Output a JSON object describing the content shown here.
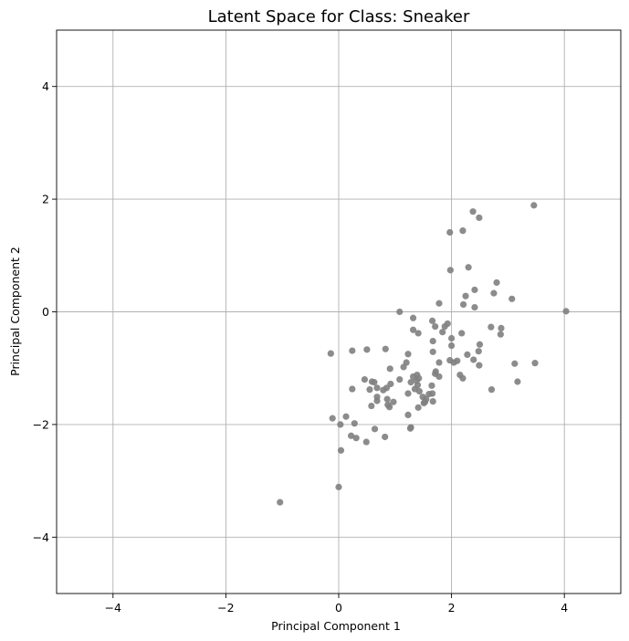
{
  "chart_data": {
    "type": "scatter",
    "title": "Latent Space for Class: Sneaker",
    "xlabel": "Principal Component 1",
    "ylabel": "Principal Component 2",
    "xlim": [
      -5,
      5
    ],
    "ylim": [
      -5,
      5
    ],
    "xticks": [
      -4,
      -2,
      0,
      2,
      4
    ],
    "yticks": [
      -4,
      -2,
      0,
      2,
      4
    ],
    "xtick_labels": [
      "−4",
      "−2",
      "0",
      "2",
      "4"
    ],
    "ytick_labels": [
      "−4",
      "−2",
      "0",
      "2",
      "4"
    ],
    "grid": true,
    "point_color": "#808080",
    "points": [
      [
        3.46,
        1.89
      ],
      [
        2.38,
        1.78
      ],
      [
        2.49,
        1.67
      ],
      [
        2.2,
        1.44
      ],
      [
        1.97,
        1.41
      ],
      [
        2.3,
        0.79
      ],
      [
        1.98,
        0.74
      ],
      [
        2.8,
        0.52
      ],
      [
        2.41,
        0.39
      ],
      [
        2.75,
        0.33
      ],
      [
        2.25,
        0.28
      ],
      [
        3.07,
        0.23
      ],
      [
        1.78,
        0.15
      ],
      [
        2.21,
        0.13
      ],
      [
        2.41,
        0.08
      ],
      [
        4.03,
        0.01
      ],
      [
        1.08,
        0.0
      ],
      [
        1.32,
        -0.11
      ],
      [
        1.66,
        -0.16
      ],
      [
        1.93,
        -0.21
      ],
      [
        1.88,
        -0.26
      ],
      [
        1.71,
        -0.26
      ],
      [
        2.7,
        -0.27
      ],
      [
        2.88,
        -0.29
      ],
      [
        1.32,
        -0.32
      ],
      [
        1.84,
        -0.36
      ],
      [
        1.41,
        -0.38
      ],
      [
        2.18,
        -0.38
      ],
      [
        2.87,
        -0.4
      ],
      [
        2.0,
        -0.47
      ],
      [
        1.67,
        -0.52
      ],
      [
        2.5,
        -0.58
      ],
      [
        2.0,
        -0.6
      ],
      [
        0.83,
        -0.66
      ],
      [
        0.5,
        -0.67
      ],
      [
        0.24,
        -0.69
      ],
      [
        2.48,
        -0.7
      ],
      [
        1.67,
        -0.71
      ],
      [
        -0.14,
        -0.74
      ],
      [
        1.23,
        -0.75
      ],
      [
        2.28,
        -0.76
      ],
      [
        2.39,
        -0.85
      ],
      [
        1.97,
        -0.86
      ],
      [
        2.1,
        -0.87
      ],
      [
        2.04,
        -0.9
      ],
      [
        1.2,
        -0.9
      ],
      [
        1.78,
        -0.9
      ],
      [
        3.48,
        -0.91
      ],
      [
        3.12,
        -0.92
      ],
      [
        2.49,
        -0.95
      ],
      [
        1.15,
        -0.98
      ],
      [
        0.91,
        -1.01
      ],
      [
        1.72,
        -1.06
      ],
      [
        1.71,
        -1.1
      ],
      [
        2.15,
        -1.12
      ],
      [
        1.39,
        -1.12
      ],
      [
        1.32,
        -1.15
      ],
      [
        1.78,
        -1.15
      ],
      [
        1.42,
        -1.18
      ],
      [
        2.2,
        -1.18
      ],
      [
        0.46,
        -1.2
      ],
      [
        1.38,
        -1.22
      ],
      [
        1.08,
        -1.2
      ],
      [
        0.59,
        -1.24
      ],
      [
        0.63,
        -1.25
      ],
      [
        3.17,
        -1.24
      ],
      [
        1.28,
        -1.25
      ],
      [
        0.92,
        -1.28
      ],
      [
        1.4,
        -1.3
      ],
      [
        1.65,
        -1.31
      ],
      [
        0.68,
        -1.35
      ],
      [
        0.85,
        -1.35
      ],
      [
        1.35,
        -1.37
      ],
      [
        0.24,
        -1.37
      ],
      [
        0.55,
        -1.38
      ],
      [
        2.71,
        -1.38
      ],
      [
        0.79,
        -1.39
      ],
      [
        1.43,
        -1.41
      ],
      [
        1.23,
        -1.45
      ],
      [
        1.66,
        -1.45
      ],
      [
        1.6,
        -1.46
      ],
      [
        0.68,
        -1.51
      ],
      [
        1.49,
        -1.51
      ],
      [
        1.55,
        -1.55
      ],
      [
        0.86,
        -1.55
      ],
      [
        0.68,
        -1.58
      ],
      [
        1.67,
        -1.59
      ],
      [
        1.53,
        -1.6
      ],
      [
        0.97,
        -1.6
      ],
      [
        1.51,
        -1.62
      ],
      [
        0.87,
        -1.65
      ],
      [
        0.58,
        -1.67
      ],
      [
        0.9,
        -1.69
      ],
      [
        1.41,
        -1.7
      ],
      [
        1.23,
        -1.83
      ],
      [
        0.13,
        -1.86
      ],
      [
        -0.11,
        -1.89
      ],
      [
        0.28,
        -1.98
      ],
      [
        0.03,
        -2.0
      ],
      [
        1.28,
        -2.05
      ],
      [
        1.27,
        -2.07
      ],
      [
        0.64,
        -2.08
      ],
      [
        0.22,
        -2.2
      ],
      [
        0.82,
        -2.22
      ],
      [
        0.31,
        -2.24
      ],
      [
        0.49,
        -2.31
      ],
      [
        0.04,
        -2.46
      ],
      [
        0.0,
        -3.11
      ],
      [
        -1.04,
        -3.38
      ]
    ]
  }
}
